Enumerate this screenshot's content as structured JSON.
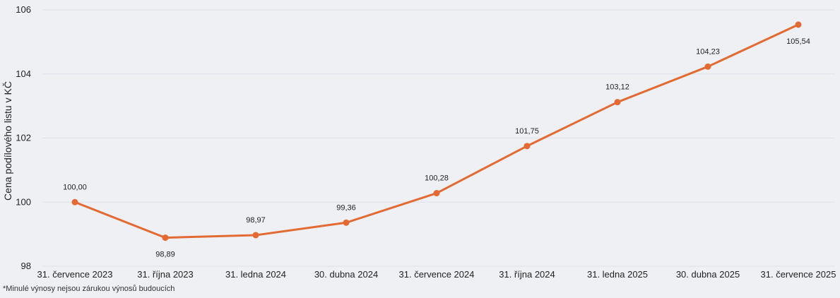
{
  "chart_data": {
    "type": "line",
    "title": "",
    "xlabel": "",
    "ylabel": "Cena podílového listu v KČ",
    "ylim": [
      98,
      106
    ],
    "yticks": [
      "98",
      "100",
      "102",
      "104",
      "106"
    ],
    "categories": [
      "31. července 2023",
      "31. října 2023",
      "31. ledna 2024",
      "30. dubna 2024",
      "31. července 2024",
      "31. října 2024",
      "31. ledna 2025",
      "30. dubna 2025",
      "31. července 2025"
    ],
    "series": [
      {
        "name": "Cena podílového listu",
        "color": "#e36a32",
        "values": [
          100.0,
          98.89,
          98.97,
          99.36,
          100.28,
          101.75,
          103.12,
          104.23,
          105.54
        ],
        "labels": [
          "100,00",
          "98,89",
          "98,97",
          "99,36",
          "100,28",
          "101,75",
          "103,12",
          "104,23",
          "105,54"
        ]
      }
    ],
    "grid": true
  },
  "footnote": "*Minulé výnosy nejsou zárukou výnosů budoucích"
}
